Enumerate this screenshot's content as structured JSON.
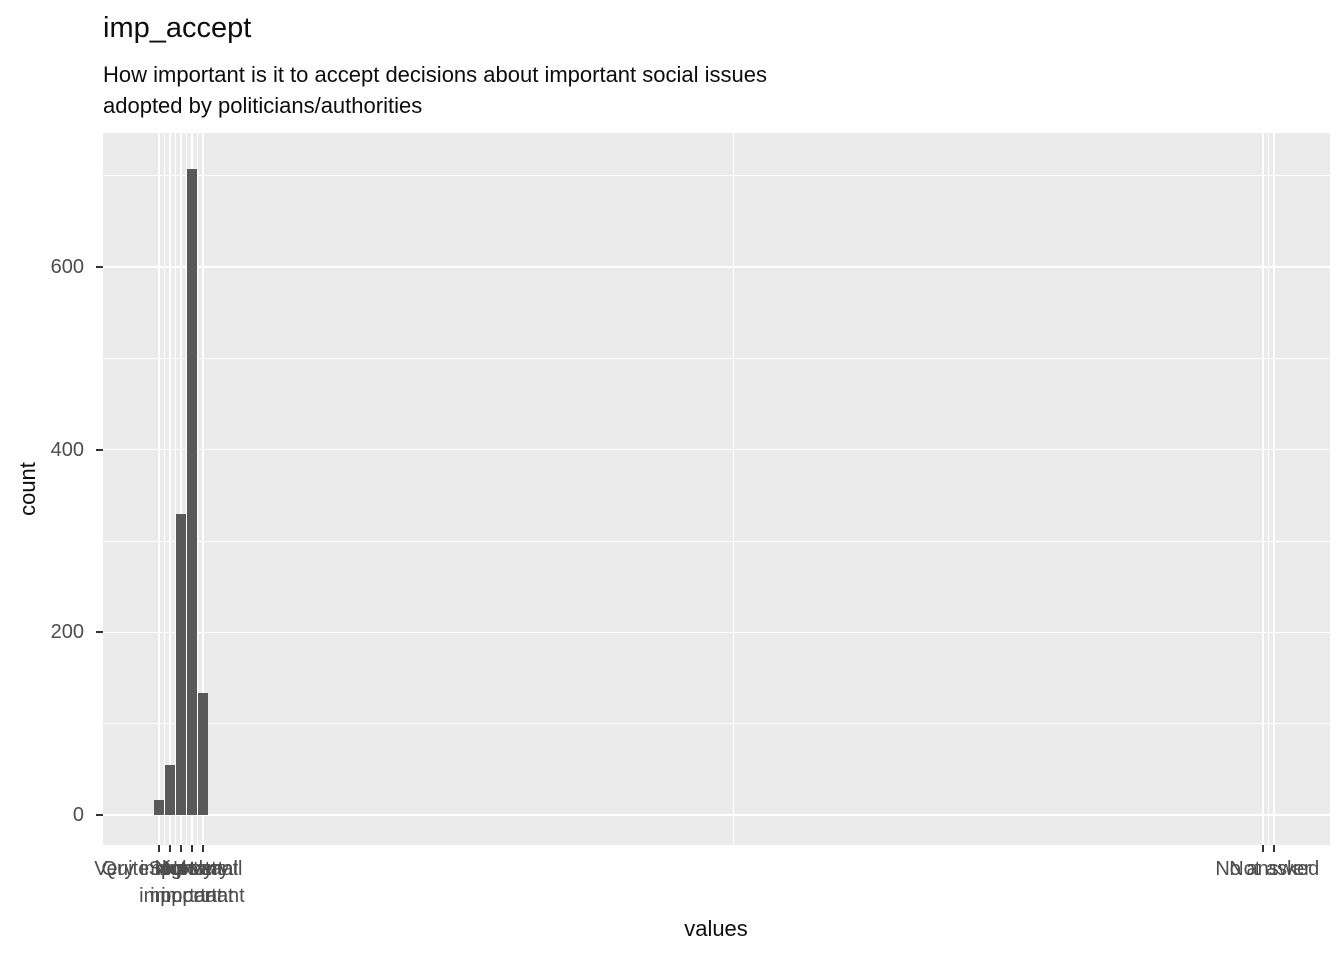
{
  "title": "imp_accept",
  "subtitle": {
    "line1": "How important is it to accept decisions about important social issues",
    "line2": "adopted by politicians/authorities"
  },
  "chart_data": {
    "type": "bar",
    "title": "imp_accept",
    "subtitle": "How important is it to accept decisions about important social issues adopted by politicians/authorities",
    "xlabel": "values",
    "ylabel": "count",
    "categories": [
      "Very important",
      "Quite important",
      "Slightly important",
      "Not very important",
      "Not at all important",
      "No answer",
      "Not asked"
    ],
    "values": [
      16,
      55,
      330,
      707,
      134,
      0,
      0
    ],
    "positions": [
      1,
      2,
      3,
      4,
      5,
      101,
      102
    ],
    "x_domain": [
      -4.05,
      107.05
    ],
    "y_domain": [
      -32.8,
      746.7
    ],
    "ylim": [
      0,
      746
    ],
    "y_major_ticks": [
      0,
      200,
      400,
      600
    ],
    "y_minor_ticks": [
      100,
      300,
      500,
      700
    ],
    "x_minor_breaks": [
      1.5,
      2.5,
      3.5,
      4.5,
      53,
      101.5
    ],
    "grid": true,
    "legend": "none",
    "bar_color": "#595959",
    "panel_bg": "#EBEBEB",
    "gridline_color": "#FFFFFF"
  }
}
